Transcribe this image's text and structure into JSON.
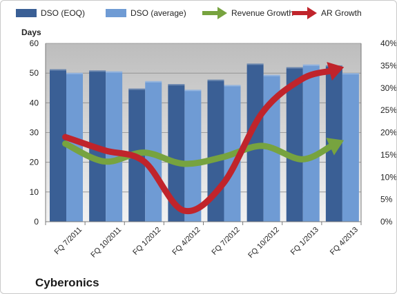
{
  "chart_data": {
    "type": "bar",
    "title": "",
    "brand_label": "Cyberonics",
    "ylabel": "Days",
    "ylim": [
      0,
      60
    ],
    "y_ticks": [
      "0",
      "10",
      "20",
      "30",
      "40",
      "50",
      "60"
    ],
    "y2lim": [
      0,
      0.4
    ],
    "y2_ticks": [
      "0%",
      "5%",
      "10%",
      "15%",
      "20%",
      "25%",
      "30%",
      "35%",
      "40%"
    ],
    "categories": [
      "FQ 7/2011",
      "FQ 10/2011",
      "FQ 1/2012",
      "FQ 4/2012",
      "FQ 7/2012",
      "FQ 10/2012",
      "FQ 1/2013",
      "FQ 4/2013"
    ],
    "series": [
      {
        "name": "DSO (EOQ)",
        "kind": "bar",
        "axis": "left",
        "color": "#3a5f95",
        "values": [
          51.3,
          50.9,
          44.8,
          46.3,
          47.8,
          53.2,
          52.0,
          52.6
        ]
      },
      {
        "name": "DSO (average)",
        "kind": "bar",
        "axis": "left",
        "color": "#6f9bd4",
        "values": [
          50.1,
          50.6,
          47.3,
          44.4,
          46.0,
          49.4,
          52.9,
          50.0
        ]
      },
      {
        "name": "Revenue Growth",
        "kind": "line",
        "axis": "right",
        "color": "#77a33f",
        "values": [
          0.175,
          0.135,
          0.155,
          0.13,
          0.145,
          0.17,
          0.14,
          0.18
        ]
      },
      {
        "name": "AR Growth",
        "kind": "line",
        "axis": "right",
        "color": "#c0242b",
        "values": [
          0.19,
          0.16,
          0.135,
          0.025,
          0.085,
          0.245,
          0.32,
          0.345
        ]
      }
    ],
    "grid": true,
    "legend_position": "top"
  }
}
